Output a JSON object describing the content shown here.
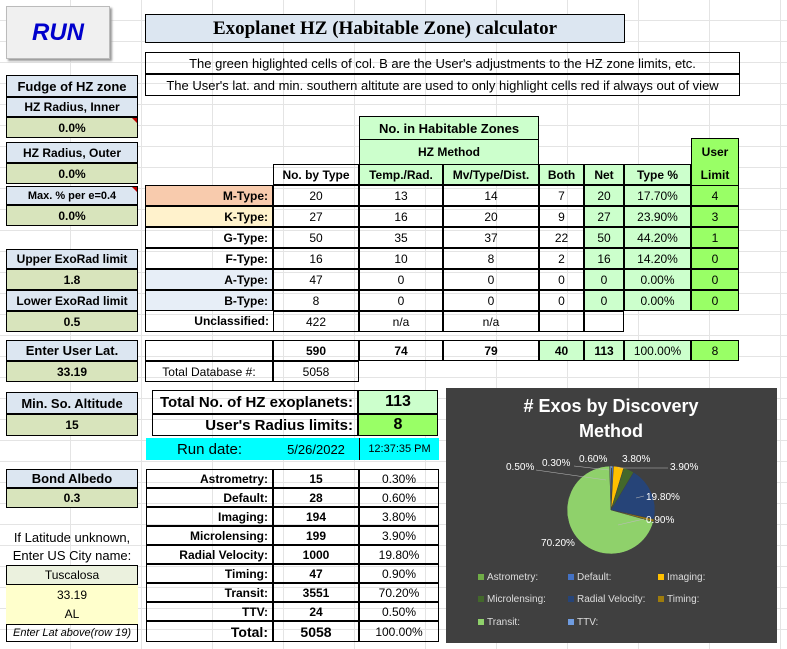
{
  "run_button": "RUN",
  "title": "Exoplanet HZ (Habitable Zone) calculator",
  "note1": "The green higlighted cells of col. B are the User's adjustments to the HZ zone limits, etc.",
  "note2": "The User's lat. and min. southern altitute are used to only highlight cells red if always out of view",
  "sidebar": {
    "fudge_header": "Fudge of HZ zone",
    "hz_inner_label": "HZ Radius, Inner",
    "hz_inner_value": "0.0%",
    "hz_outer_label": "HZ Radius, Outer",
    "hz_outer_value": "0.0%",
    "maxpct_label": "Max. % per e=0.4",
    "maxpct_value": "0.0%",
    "upper_label": "Upper ExoRad limit",
    "upper_value": "1.8",
    "lower_label": "Lower ExoRad limit",
    "lower_value": "0.5",
    "lat_label": "Enter User Lat.",
    "lat_value": "33.19",
    "minalt_label": "Min. So. Altitude",
    "minalt_value": "15",
    "albedo_label": "Bond Albedo",
    "albedo_value": "0.3",
    "city_note1": "If Latitude unknown,",
    "city_note2": "Enter US City name:",
    "city": "Tuscalosa",
    "city_lat": "33.19",
    "city_state": "AL",
    "city_note3": "Enter Lat above(row 19)"
  },
  "hz_table": {
    "group_header": "No. in Habitable Zones",
    "method_header": "HZ Method",
    "user_limit_header1": "User",
    "user_limit_header2": "Limit",
    "col_headers": [
      "No. by Type",
      "Temp./Rad.",
      "Mv/Type/Dist.",
      "Both",
      "Net",
      "Type %"
    ],
    "rows": [
      {
        "type": "M-Type:",
        "by_type": "20",
        "temp": "13",
        "mv": "14",
        "both": "7",
        "net": "20",
        "pct": "17.70%",
        "limit": "4"
      },
      {
        "type": "K-Type:",
        "by_type": "27",
        "temp": "16",
        "mv": "20",
        "both": "9",
        "net": "27",
        "pct": "23.90%",
        "limit": "3"
      },
      {
        "type": "G-Type:",
        "by_type": "50",
        "temp": "35",
        "mv": "37",
        "both": "22",
        "net": "50",
        "pct": "44.20%",
        "limit": "1"
      },
      {
        "type": "F-Type:",
        "by_type": "16",
        "temp": "10",
        "mv": "8",
        "both": "2",
        "net": "16",
        "pct": "14.20%",
        "limit": "0"
      },
      {
        "type": "A-Type:",
        "by_type": "47",
        "temp": "0",
        "mv": "0",
        "both": "0",
        "net": "0",
        "pct": "0.00%",
        "limit": "0"
      },
      {
        "type": "B-Type:",
        "by_type": "8",
        "temp": "0",
        "mv": "0",
        "both": "0",
        "net": "0",
        "pct": "0.00%",
        "limit": "0"
      }
    ],
    "unclassified_label": "Unclassified:",
    "unclassified_value": "422",
    "unclassified_na1": "n/a",
    "unclassified_na2": "n/a",
    "totals": {
      "by_type": "590",
      "temp": "74",
      "mv": "79",
      "both": "40",
      "net": "113",
      "pct": "100.00%",
      "limit": "8"
    },
    "total_db_label": "Total Database #:",
    "total_db_value": "5058"
  },
  "summary": {
    "total_hz_label": "Total No. of HZ exoplanets:",
    "total_hz_value": "113",
    "user_radius_label": "User's Radius limits:",
    "user_radius_value": "8",
    "run_date_label": "Run date:",
    "run_date": "5/26/2022",
    "run_time": "12:37:35 PM"
  },
  "discovery": {
    "rows": [
      {
        "method": "Astrometry:",
        "count": "15",
        "pct": "0.30%"
      },
      {
        "method": "Default:",
        "count": "28",
        "pct": "0.60%"
      },
      {
        "method": "Imaging:",
        "count": "194",
        "pct": "3.80%"
      },
      {
        "method": "Microlensing:",
        "count": "199",
        "pct": "3.90%"
      },
      {
        "method": "Radial Velocity:",
        "count": "1000",
        "pct": "19.80%"
      },
      {
        "method": "Timing:",
        "count": "47",
        "pct": "0.90%"
      },
      {
        "method": "Transit:",
        "count": "3551",
        "pct": "70.20%"
      },
      {
        "method": "TTV:",
        "count": "24",
        "pct": "0.50%"
      }
    ],
    "total_label": "Total:",
    "total_count": "5058",
    "total_pct": "100.00%"
  },
  "chart_data": {
    "type": "pie",
    "title": "# Exos by Discovery Method",
    "categories": [
      "Astrometry:",
      "Default:",
      "Imaging:",
      "Microlensing:",
      "Radial Velocity:",
      "Timing:",
      "Transit:",
      "TTV:"
    ],
    "values": [
      0.3,
      0.6,
      3.8,
      3.9,
      19.8,
      0.9,
      70.2,
      0.5
    ],
    "labels": [
      "0.30%",
      "0.60%",
      "3.80%",
      "3.90%",
      "19.80%",
      "0.90%",
      "70.20%",
      "0.50%"
    ],
    "colors": [
      "#70ad47",
      "#4472c4",
      "#ffc000",
      "#43682b",
      "#264478",
      "#9e7c0c",
      "#8fd16b",
      "#6f9ce0"
    ],
    "legend_position": "bottom"
  }
}
